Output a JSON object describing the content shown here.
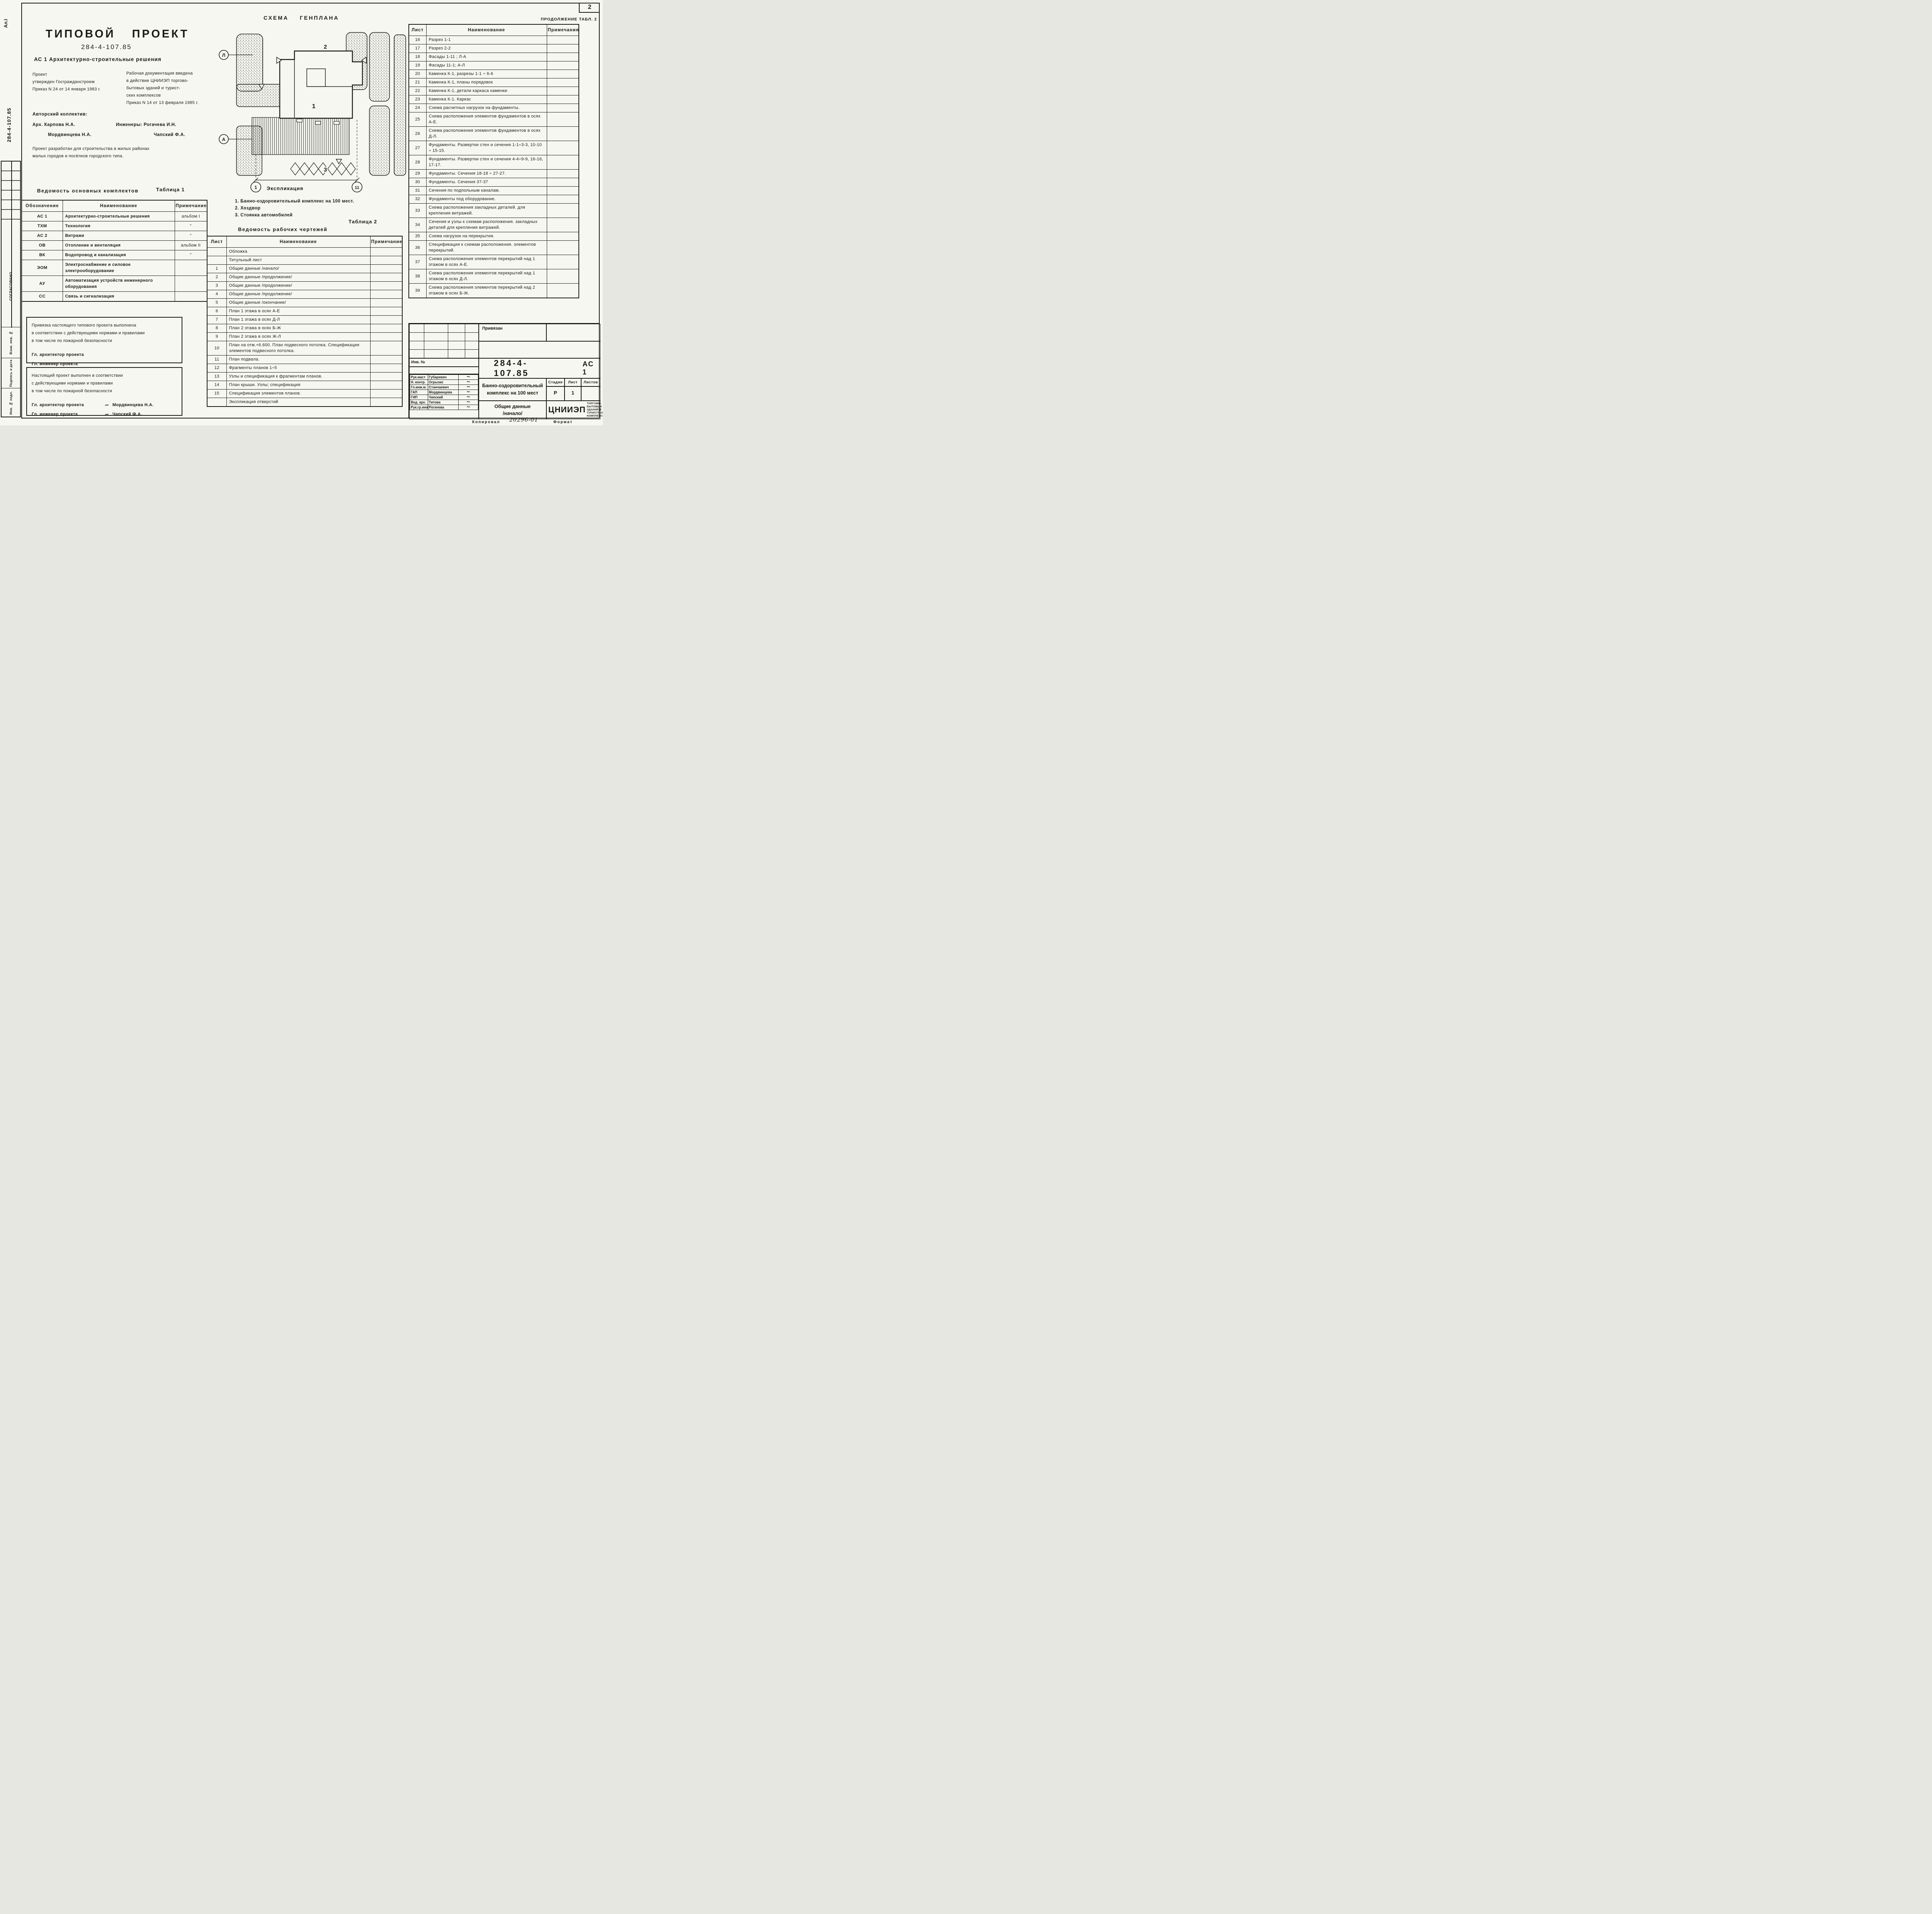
{
  "page": {
    "corner_label": "Ал.I",
    "side_number": "284-4-107.85",
    "page_number": "2",
    "continuation_caption": "ПРОДОЛЖЕНИЕ  ТАБЛ. 2",
    "agreed_vertical": "СОГЛАСОВАНО",
    "side_labels": [
      "Взам. инв. №",
      "Подпись и дата",
      "Инв. № подл."
    ],
    "footer": {
      "code": "20296-01",
      "copied": "Копировал",
      "format": "Формат"
    }
  },
  "header": {
    "doc_type": "ТИПОВОЙ ПРОЕКТ",
    "doc_number": "284-4-107.85",
    "album_title": "АС 1  Архитектурно-строительные решения"
  },
  "approval": {
    "left_lines": [
      "Проект",
      "утвержден Госгражданстроем",
      "Приказ N 24  от 14 января 1983 г."
    ],
    "right_lines": [
      "Рабочая документация введена",
      "в действие ЦНИИЭП торгово-",
      "бытовых зданий и турист-",
      "ских комплексов",
      "Приказ N 14   от 13 февраля 1985 г."
    ]
  },
  "authors": {
    "title": "Авторский коллектив:",
    "arch_lines": [
      "Арх.  Карпова Н.А.",
      "Мордвинцева Н.А."
    ],
    "eng_lines": [
      "Инженеры:  Рогачева И.Н.",
      "Чапский Ф.А."
    ]
  },
  "developed_lines": [
    "Проект разработан для строительства в жилых районах",
    "малых городов и посёлков городского типа."
  ],
  "table1": {
    "title": "Ведомость основных комплектов",
    "caption": "Таблица 1",
    "headers": [
      "Обозначение",
      "Наименование",
      "Примечание"
    ],
    "rows": [
      [
        "АС 1",
        "Архитектурно-строительные решения",
        "альбом I"
      ],
      [
        "ТХМ",
        "Технология",
        "\""
      ],
      [
        "АС 2",
        "Витражи",
        "\""
      ],
      [
        "ОВ",
        "Отопление и вентиляция",
        "альбом II"
      ],
      [
        "ВК",
        "Водопровод и канализация",
        "\""
      ],
      [
        "ЭОМ",
        "Электроснабжение и силовое электрооборудование",
        ""
      ],
      [
        "АУ",
        "Автоматизация устройств инженерного оборудования",
        ""
      ],
      [
        "СС",
        "Связь и сигнализация",
        ""
      ]
    ]
  },
  "site_plan": {
    "title": "СХЕМА ГЕНПЛАНА",
    "building_label": "1",
    "yard_label": "2",
    "parking_label": "3",
    "axis_left_top": "Л",
    "axis_left_bottom": "А",
    "axis_bottom_left": "1",
    "axis_bottom_right": "11"
  },
  "legend": {
    "title": "Экспликация",
    "items": [
      "1. Банно-оздоровительный комплекс  на 100 мест.",
      "2. Хоздвор",
      "3. Стоянка   автомобилей"
    ]
  },
  "table2": {
    "caption": "Таблица 2",
    "title": "Ведомость рабочих чертежей",
    "headers": [
      "Лист",
      "Наименование",
      "Примечание"
    ],
    "rows": [
      [
        "",
        "Обложка",
        ""
      ],
      [
        "",
        "Титульный лист",
        ""
      ],
      [
        "1",
        "Общие данные /начало/",
        ""
      ],
      [
        "2",
        "Общие данные /продолжение/",
        ""
      ],
      [
        "3",
        "Общие данные /продолжение/",
        ""
      ],
      [
        "4",
        "Общие данные /продолжение/",
        ""
      ],
      [
        "5",
        "Общие данные /окончание/",
        ""
      ],
      [
        "6",
        "План 1 этажа в осях А-Е",
        ""
      ],
      [
        "7",
        "План 1 этажа в осях Д-Л",
        ""
      ],
      [
        "8",
        "План 2 этажа в осях Б-Ж",
        ""
      ],
      [
        "9",
        "План 2 этажа в осях Ж-Л",
        ""
      ],
      [
        "10",
        "План на отм.+6.600. План подвесного потолка. Спецификация элементов подвесного потолка.",
        ""
      ],
      [
        "11",
        "План подвала.",
        ""
      ],
      [
        "12",
        "Фрагменты планов 1÷5",
        ""
      ],
      [
        "13",
        "Узлы и спецификация к фрагментам планов.",
        ""
      ],
      [
        "14",
        "План крыши. Узлы; спецификация",
        ""
      ],
      [
        "15",
        "Спецификация элементов планов.",
        ""
      ],
      [
        "",
        "Экспликация отверстий",
        ""
      ]
    ]
  },
  "table2_cont": {
    "headers": [
      "Лист",
      "Наименование",
      "Примечания"
    ],
    "rows": [
      [
        "16",
        "Разрез 1-1",
        ""
      ],
      [
        "17",
        "Разрез 2-2",
        ""
      ],
      [
        "18",
        "Фасады 1-11 ; Л-А",
        ""
      ],
      [
        "19",
        "Фасады 11-1; А-Л",
        ""
      ],
      [
        "20",
        "Каменка К-1, разрезы 1-1 ÷ 6-6",
        ""
      ],
      [
        "21",
        "Каменка К-1, планы порядовок",
        ""
      ],
      [
        "22",
        "Каменка К-1, детали каркаса каменки",
        ""
      ],
      [
        "23",
        "Каменка К-1. Каркас",
        ""
      ],
      [
        "24",
        "Схема расчетных нагрузок на фундаменты.",
        ""
      ],
      [
        "25",
        "Схема расположения элементов фундаментов в осях А-Е.",
        ""
      ],
      [
        "26",
        "Схема расположения элементов фундаментов в осях Д-Л.",
        ""
      ],
      [
        "27",
        "Фундаменты. Развертки стен и сечения 1-1÷3-3, 10-10 ÷ 15-15.",
        ""
      ],
      [
        "28",
        "Фундаменты. Развертки стен и сечения 4-4÷9-9, 16-16, 17-17.",
        ""
      ],
      [
        "29",
        "Фундаменты. Сечения 18-18 ÷ 27-27.",
        ""
      ],
      [
        "30",
        "Фундаменты. Сечения 37-37",
        ""
      ],
      [
        "31",
        "Сечения по подпольным каналам.",
        ""
      ],
      [
        "32",
        "Фундаменты под оборудование.",
        ""
      ],
      [
        "33",
        "Схема расположения закладных деталей. для крепления витражей.",
        ""
      ],
      [
        "34",
        "Сечения и узлы к схемам расположения. закладных деталей для крепления витражей.",
        ""
      ],
      [
        "35",
        "Схема нагрузок на перекрытия.",
        ""
      ],
      [
        "36",
        "Спецификация к схемам расположения. элементов перекрытий.",
        ""
      ],
      [
        "37",
        "Схема расположения элементов перекрытий над 1 этажом в осях А-Е.",
        ""
      ],
      [
        "38",
        "Схема расположения элементов перекрытий над 1 этажом в осях Д-Л.",
        ""
      ],
      [
        "39",
        "Схема расположения элементов перекрытий над 2 этажом в осях Б-Ж.",
        ""
      ]
    ]
  },
  "note_box1": {
    "lines": [
      "Привязка  настоящего типового проекта выполнена",
      "в  соответствии  с действующими нормами и правилами",
      "в том числе по          пожарной  безопасности"
    ],
    "sign_lines": [
      "Гл.  архитектор проекта",
      "Гл.  инженер  проекта"
    ]
  },
  "note_box2": {
    "lines": [
      "Настоящий  проект  выполнен  в соответствии",
      "с  действующими  нормами  и  правилами",
      "в том числе по          пожарной безопасности"
    ],
    "sign_rows": [
      [
        "Гл.  архитектор проекта",
        "~",
        "Мордвинцева Н.А."
      ],
      [
        "Гл.  инженер проекта",
        "~",
        "Чапский  Ф.А."
      ]
    ]
  },
  "stamp": {
    "attached": "Привязан",
    "inv_label": "Инв. №",
    "doc_number": "284-4-107.85",
    "set_code": "АС 1",
    "roles": [
      [
        "Рук.маст",
        "Губаревич",
        "~"
      ],
      [
        "Н. контр.",
        "Огрызко",
        "~"
      ],
      [
        "Гл.инж.м.",
        "Станчаевич",
        "~"
      ],
      [
        "ГАП",
        "Мордвинцева",
        "~"
      ],
      [
        "ГИП",
        "Чапский",
        "~"
      ],
      [
        "Вед. арх.",
        "Титова",
        "~"
      ],
      [
        "Рук.гр.инж",
        "Рогачева",
        "~"
      ]
    ],
    "project_name_lines": [
      "Банно-оздоровительный",
      "комплекс   на  100 мест"
    ],
    "sheet_title_lines": [
      "Общие   данные",
      "/начало/"
    ],
    "stage_headers": [
      "Стадия",
      "Лист",
      "Листов"
    ],
    "stage_values": [
      "Р",
      "1",
      ""
    ],
    "org": "ЦНИИЭП",
    "org_sub": "Торгово-бытовых зданий и туристских комплексов"
  }
}
